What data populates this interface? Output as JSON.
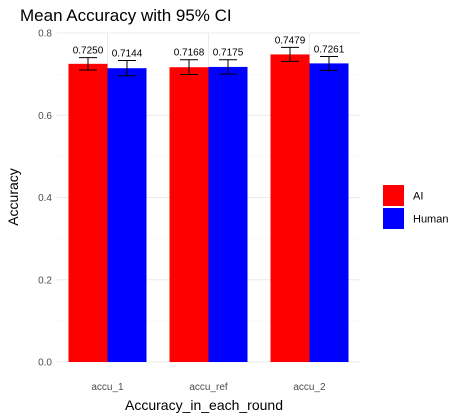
{
  "chart_data": {
    "type": "bar",
    "title": "Mean Accuracy with 95% CI",
    "xlabel": "Accuracy_in_each_round",
    "ylabel": "Accuracy",
    "categories": [
      "accu_1",
      "accu_ref",
      "accu_2"
    ],
    "series": [
      {
        "name": "AI",
        "color": "#ff0000",
        "values": [
          0.725,
          0.7168,
          0.7479
        ],
        "value_labels": [
          "0.7250",
          "0.7168",
          "0.7479"
        ],
        "ci_low": [
          0.71,
          0.699,
          0.731
        ],
        "ci_high": [
          0.74,
          0.735,
          0.765
        ]
      },
      {
        "name": "Human",
        "color": "#0000ff",
        "values": [
          0.7144,
          0.7175,
          0.7261
        ],
        "value_labels": [
          "0.7144",
          "0.7175",
          "0.7261"
        ],
        "ci_low": [
          0.696,
          0.7,
          0.709
        ],
        "ci_high": [
          0.733,
          0.735,
          0.743
        ]
      }
    ],
    "ylim": [
      0,
      0.8
    ],
    "yticks": [
      0.0,
      0.2,
      0.4,
      0.6,
      0.8
    ],
    "ytick_labels": [
      "0.0",
      "0.2",
      "0.4",
      "0.6",
      "0.8"
    ],
    "grid": true,
    "legend_position": "right"
  }
}
